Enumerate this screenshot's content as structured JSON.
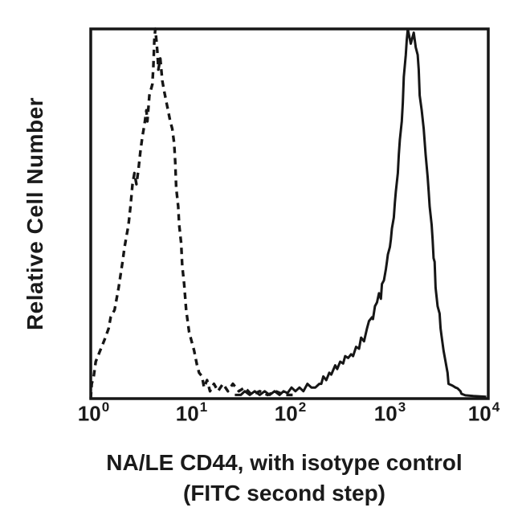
{
  "figure": {
    "background": "#ffffff",
    "ink_color": "#161616"
  },
  "axes": {
    "y_label": "Relative Cell Number",
    "x_label_line1": "NA/LE CD44, with isotype control",
    "x_label_line2": "(FITC second step)",
    "x_ticks": [
      {
        "base": "10",
        "exp": "0"
      },
      {
        "base": "10",
        "exp": "1"
      },
      {
        "base": "10",
        "exp": "2"
      },
      {
        "base": "10",
        "exp": "3"
      },
      {
        "base": "10",
        "exp": "4"
      }
    ]
  },
  "chart_data": {
    "type": "line",
    "subtype": "flow-cytometry-histogram-overlay",
    "title": "",
    "xlabel": "NA/LE CD44, with isotype control (FITC second step)",
    "ylabel": "Relative Cell Number",
    "x_scale": "log10",
    "x_range_log10": [
      0,
      4
    ],
    "x_tick_labels": [
      "10^0",
      "10^1",
      "10^2",
      "10^3",
      "10^4"
    ],
    "ylim": [
      0,
      1
    ],
    "y_units": "relative (peaks clipped at plot top)",
    "grid": false,
    "legend_position": "none",
    "series": [
      {
        "name": "isotype control",
        "style": "dashed",
        "peak_x_approx": 4.5,
        "points": [
          [
            0.0,
            0.0
          ],
          [
            0.01,
            0.04
          ],
          [
            0.03,
            0.06
          ],
          [
            0.05,
            0.1
          ],
          [
            0.08,
            0.12
          ],
          [
            0.11,
            0.14
          ],
          [
            0.14,
            0.16
          ],
          [
            0.18,
            0.19
          ],
          [
            0.2,
            0.22
          ],
          [
            0.24,
            0.24
          ],
          [
            0.28,
            0.3
          ],
          [
            0.32,
            0.37
          ],
          [
            0.34,
            0.41
          ],
          [
            0.38,
            0.47
          ],
          [
            0.4,
            0.52
          ],
          [
            0.42,
            0.58
          ],
          [
            0.44,
            0.61
          ],
          [
            0.46,
            0.58
          ],
          [
            0.48,
            0.62
          ],
          [
            0.5,
            0.67
          ],
          [
            0.52,
            0.71
          ],
          [
            0.54,
            0.74
          ],
          [
            0.56,
            0.78
          ],
          [
            0.57,
            0.75
          ],
          [
            0.59,
            0.82
          ],
          [
            0.62,
            0.85
          ],
          [
            0.63,
            0.9
          ],
          [
            0.64,
            0.97
          ],
          [
            0.65,
            1.0
          ],
          [
            0.66,
            0.97
          ],
          [
            0.67,
            0.94
          ],
          [
            0.68,
            0.89
          ],
          [
            0.7,
            0.92
          ],
          [
            0.72,
            0.86
          ],
          [
            0.74,
            0.83
          ],
          [
            0.77,
            0.79
          ],
          [
            0.8,
            0.75
          ],
          [
            0.82,
            0.73
          ],
          [
            0.84,
            0.69
          ],
          [
            0.85,
            0.64
          ],
          [
            0.86,
            0.57
          ],
          [
            0.88,
            0.52
          ],
          [
            0.89,
            0.47
          ],
          [
            0.91,
            0.42
          ],
          [
            0.92,
            0.36
          ],
          [
            0.94,
            0.31
          ],
          [
            0.96,
            0.24
          ],
          [
            0.99,
            0.18
          ],
          [
            1.02,
            0.15
          ],
          [
            1.04,
            0.13
          ],
          [
            1.07,
            0.09
          ],
          [
            1.09,
            0.07
          ],
          [
            1.12,
            0.06
          ],
          [
            1.14,
            0.03
          ],
          [
            1.17,
            0.05
          ],
          [
            1.2,
            0.02
          ],
          [
            1.24,
            0.04
          ],
          [
            1.28,
            0.02
          ],
          [
            1.33,
            0.04
          ],
          [
            1.38,
            0.02
          ],
          [
            1.43,
            0.04
          ],
          [
            1.49,
            0.02
          ],
          [
            1.55,
            0.03
          ],
          [
            1.62,
            0.01
          ],
          [
            1.7,
            0.02
          ],
          [
            1.78,
            0.01
          ],
          [
            1.86,
            0.02
          ],
          [
            1.95,
            0.01
          ],
          [
            2.05,
            0.01
          ]
        ]
      },
      {
        "name": "NA/LE CD44",
        "style": "solid",
        "peak_x_approx": 1800,
        "points": [
          [
            1.45,
            0.01
          ],
          [
            1.51,
            0.01
          ],
          [
            1.55,
            0.02
          ],
          [
            1.6,
            0.01
          ],
          [
            1.65,
            0.02
          ],
          [
            1.7,
            0.01
          ],
          [
            1.75,
            0.02
          ],
          [
            1.8,
            0.01
          ],
          [
            1.85,
            0.02
          ],
          [
            1.9,
            0.01
          ],
          [
            1.94,
            0.02
          ],
          [
            1.98,
            0.015
          ],
          [
            2.02,
            0.03
          ],
          [
            2.06,
            0.02
          ],
          [
            2.1,
            0.03
          ],
          [
            2.14,
            0.02
          ],
          [
            2.18,
            0.04
          ],
          [
            2.22,
            0.03
          ],
          [
            2.26,
            0.03
          ],
          [
            2.3,
            0.04
          ],
          [
            2.32,
            0.04
          ],
          [
            2.34,
            0.06
          ],
          [
            2.37,
            0.05
          ],
          [
            2.4,
            0.07
          ],
          [
            2.42,
            0.065
          ],
          [
            2.46,
            0.09
          ],
          [
            2.48,
            0.08
          ],
          [
            2.51,
            0.1
          ],
          [
            2.54,
            0.095
          ],
          [
            2.56,
            0.115
          ],
          [
            2.59,
            0.11
          ],
          [
            2.62,
            0.12
          ],
          [
            2.64,
            0.115
          ],
          [
            2.67,
            0.14
          ],
          [
            2.7,
            0.135
          ],
          [
            2.72,
            0.165
          ],
          [
            2.75,
            0.155
          ],
          [
            2.78,
            0.19
          ],
          [
            2.8,
            0.21
          ],
          [
            2.83,
            0.22
          ],
          [
            2.84,
            0.215
          ],
          [
            2.86,
            0.25
          ],
          [
            2.88,
            0.26
          ],
          [
            2.9,
            0.285
          ],
          [
            2.92,
            0.27
          ],
          [
            2.93,
            0.31
          ],
          [
            2.95,
            0.32
          ],
          [
            2.97,
            0.35
          ],
          [
            2.98,
            0.37
          ],
          [
            2.99,
            0.39
          ],
          [
            3.01,
            0.41
          ],
          [
            3.02,
            0.43
          ],
          [
            3.03,
            0.46
          ],
          [
            3.05,
            0.49
          ],
          [
            3.06,
            0.53
          ],
          [
            3.07,
            0.56
          ],
          [
            3.09,
            0.61
          ],
          [
            3.1,
            0.66
          ],
          [
            3.11,
            0.7
          ],
          [
            3.13,
            0.75
          ],
          [
            3.14,
            0.8
          ],
          [
            3.15,
            0.87
          ],
          [
            3.17,
            0.93
          ],
          [
            3.18,
            0.97
          ],
          [
            3.19,
            1.0
          ],
          [
            3.22,
            0.96
          ],
          [
            3.25,
            0.99
          ],
          [
            3.27,
            0.95
          ],
          [
            3.29,
            0.93
          ],
          [
            3.3,
            0.89
          ],
          [
            3.31,
            0.82
          ],
          [
            3.33,
            0.78
          ],
          [
            3.35,
            0.73
          ],
          [
            3.37,
            0.66
          ],
          [
            3.39,
            0.6
          ],
          [
            3.4,
            0.56
          ],
          [
            3.41,
            0.52
          ],
          [
            3.43,
            0.47
          ],
          [
            3.44,
            0.43
          ],
          [
            3.45,
            0.38
          ],
          [
            3.46,
            0.37
          ],
          [
            3.47,
            0.3
          ],
          [
            3.49,
            0.25
          ],
          [
            3.51,
            0.23
          ],
          [
            3.52,
            0.19
          ],
          [
            3.53,
            0.17
          ],
          [
            3.55,
            0.13
          ],
          [
            3.57,
            0.1
          ],
          [
            3.59,
            0.07
          ],
          [
            3.6,
            0.04
          ],
          [
            3.64,
            0.035
          ],
          [
            3.67,
            0.03
          ],
          [
            3.69,
            0.028
          ],
          [
            3.72,
            0.02
          ],
          [
            3.73,
            0.013
          ],
          [
            3.77,
            0.009
          ],
          [
            3.85,
            0.007
          ],
          [
            3.98,
            0.005
          ]
        ]
      }
    ]
  }
}
